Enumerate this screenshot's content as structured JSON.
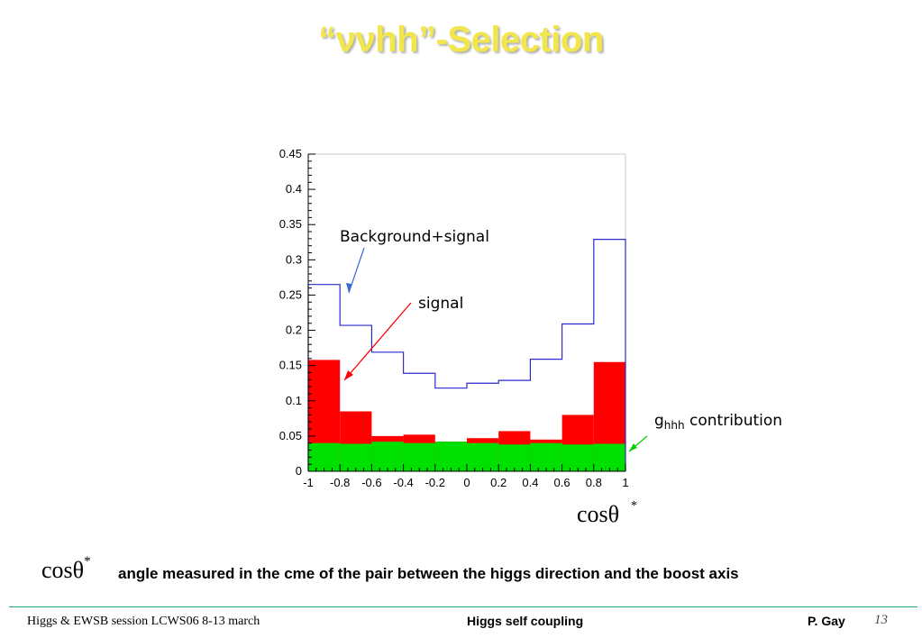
{
  "slide": {
    "title": "“ννhh”-Selection",
    "caption_symbol": "cosθ",
    "caption_symbol_sup": "*",
    "caption_text": "angle measured in the cme of the pair between the higgs direction and the boost axis"
  },
  "footer": {
    "left": "Higgs & EWSB session LCWS06 8-13 march",
    "center": "Higgs self coupling",
    "author": "P.  Gay",
    "page": "13"
  },
  "chart_data": {
    "type": "histogram",
    "xlabel": "cosθ*",
    "xlim": [
      -1,
      1
    ],
    "ylim": [
      0,
      0.45
    ],
    "x_ticks": [
      "-1",
      "-0.8",
      "-0.6",
      "-0.4",
      "-0.2",
      "0",
      "0.2",
      "0.4",
      "0.6",
      "0.8",
      "1"
    ],
    "y_ticks": [
      "0",
      "0.05",
      "0.1",
      "0.15",
      "0.2",
      "0.25",
      "0.3",
      "0.35",
      "0.4",
      "0.45"
    ],
    "bin_edges": [
      -1,
      -0.8,
      -0.6,
      -0.4,
      -0.2,
      0,
      0.2,
      0.4,
      0.6,
      0.8,
      1
    ],
    "series": [
      {
        "name": "Background+signal",
        "style": "step",
        "color": "#2a2ad0",
        "values": [
          0.265,
          0.207,
          0.169,
          0.139,
          0.118,
          0.125,
          0.129,
          0.159,
          0.209,
          0.329
        ]
      },
      {
        "name": "signal",
        "style": "filled",
        "color": "#ff0000",
        "values": [
          0.158,
          0.085,
          0.05,
          0.052,
          0.042,
          0.047,
          0.057,
          0.045,
          0.08,
          0.155
        ]
      },
      {
        "name": "g_hhh contribution",
        "style": "filled",
        "color": "#00e000",
        "values": [
          0.04,
          0.039,
          0.042,
          0.04,
          0.042,
          0.04,
          0.038,
          0.04,
          0.038,
          0.039
        ]
      }
    ],
    "annotations": [
      {
        "text": "Background+signal",
        "arrow_color": "#3a6ad8"
      },
      {
        "text": "signal",
        "arrow_color": "#ff0000"
      },
      {
        "text": "g",
        "sub": "hhh",
        "suffix": " contribution",
        "arrow_color": "#00cc00"
      }
    ]
  }
}
